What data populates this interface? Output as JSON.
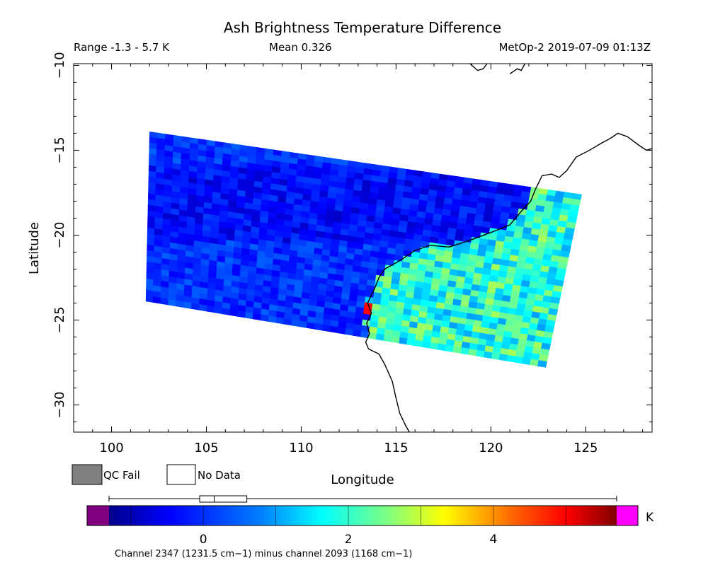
{
  "header": {
    "title": "Ash Brightness Temperature Difference",
    "range": "Range -1.3 - 5.7 K",
    "mean": "Mean 0.326",
    "satellite_time": "MetOp-2 2019-07-09 01:13Z"
  },
  "legend": {
    "qc_fail": "QC Fail",
    "no_data": "No Data",
    "qc_fail_color": "#808080",
    "no_data_color": "#ffffff"
  },
  "colorbar": {
    "unit": "K",
    "min": -1.3,
    "max": 5.7,
    "ticks": [
      "0",
      "2",
      "4"
    ],
    "tick_values": [
      0,
      2,
      4
    ],
    "underflow_color": "#800080",
    "overflow_color": "#ff00ff",
    "boxplot": {
      "whisker_min": -1.3,
      "q1": -0.05,
      "median": 0.15,
      "q3": 0.6,
      "whisker_max": 5.7
    },
    "caption": "Channel 2347 (1231.5 cm−1) minus channel 2093 (1168 cm−1)"
  },
  "chart_data": {
    "type": "heatmap",
    "title": "Ash Brightness Temperature Difference",
    "xlabel": "Longitude",
    "ylabel": "Latitude",
    "xlim": [
      98,
      128.5
    ],
    "ylim": [
      -31.6,
      -9.9
    ],
    "xticks": [
      100,
      105,
      110,
      115,
      120,
      125
    ],
    "xtick_labels": [
      "100",
      "105",
      "110",
      "115",
      "120",
      "125"
    ],
    "yticks": [
      -10,
      -15,
      -20,
      -25,
      -30
    ],
    "ytick_labels": [
      "−10",
      "−15",
      "−20",
      "−25",
      "−30"
    ],
    "swath_corners": {
      "northwest": [
        102.0,
        -13.9
      ],
      "northeast": [
        124.8,
        -17.6
      ],
      "southeast": [
        122.9,
        -27.8
      ],
      "southwest": [
        101.8,
        -23.9
      ]
    },
    "value_range_K": [
      -1.3,
      5.7
    ],
    "mean_K": 0.326,
    "ocean_typical_K": [
      -0.5,
      0.5
    ],
    "land_typical_K": [
      1.0,
      2.8
    ],
    "max_hotspot": {
      "lon": 113.5,
      "lat": -24.3,
      "value_K": 5.0
    },
    "coastline": [
      [
        113.55,
        -26.7
      ],
      [
        113.4,
        -26.3
      ],
      [
        113.6,
        -25.8
      ],
      [
        113.45,
        -25.2
      ],
      [
        113.7,
        -24.6
      ],
      [
        113.5,
        -24.0
      ],
      [
        113.85,
        -23.2
      ],
      [
        114.1,
        -22.5
      ],
      [
        114.4,
        -22.0
      ],
      [
        115.2,
        -21.5
      ],
      [
        116.0,
        -20.9
      ],
      [
        116.8,
        -20.6
      ],
      [
        117.8,
        -20.7
      ],
      [
        118.9,
        -20.3
      ],
      [
        120.1,
        -19.8
      ],
      [
        121.0,
        -19.4
      ],
      [
        121.6,
        -18.6
      ],
      [
        122.1,
        -18.0
      ],
      [
        122.35,
        -17.3
      ],
      [
        122.7,
        -16.5
      ],
      [
        123.2,
        -16.4
      ],
      [
        123.6,
        -16.6
      ],
      [
        124.0,
        -16.2
      ],
      [
        124.5,
        -15.4
      ],
      [
        125.2,
        -15.0
      ],
      [
        125.8,
        -14.6
      ],
      [
        126.3,
        -14.3
      ],
      [
        126.7,
        -14.0
      ],
      [
        127.2,
        -14.2
      ],
      [
        127.8,
        -14.7
      ],
      [
        128.2,
        -15.0
      ],
      [
        128.5,
        -14.9
      ]
    ],
    "coastline_south": [
      [
        113.55,
        -26.7
      ],
      [
        114.1,
        -27.0
      ],
      [
        114.4,
        -27.6
      ],
      [
        114.8,
        -28.6
      ],
      [
        115.0,
        -29.6
      ],
      [
        115.2,
        -30.5
      ],
      [
        115.5,
        -31.2
      ],
      [
        115.7,
        -31.6
      ]
    ],
    "north_fragments": [
      [
        [
          118.9,
          -9.9
        ],
        [
          119.3,
          -10.3
        ],
        [
          119.6,
          -10.2
        ],
        [
          119.8,
          -9.9
        ]
      ],
      [
        [
          121.0,
          -10.5
        ],
        [
          121.4,
          -10.2
        ],
        [
          121.6,
          -10.3
        ],
        [
          121.8,
          -9.9
        ]
      ]
    ]
  }
}
